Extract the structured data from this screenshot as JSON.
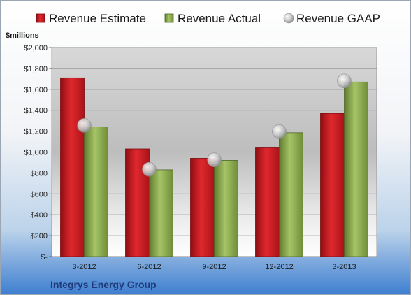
{
  "chart_data": {
    "type": "bar",
    "company": "Integrys Energy Group",
    "ylabel": "$millions",
    "xlabel": "",
    "categories": [
      "3-2012",
      "6-2012",
      "9-2012",
      "12-2012",
      "3-2013"
    ],
    "series": [
      {
        "name": "Revenue Estimate",
        "kind": "bar",
        "color": "#c41e24",
        "values": [
          1710,
          1030,
          940,
          1040,
          1370
        ]
      },
      {
        "name": "Revenue Actual",
        "kind": "bar",
        "color": "#8cad4f",
        "values": [
          1240,
          830,
          920,
          1185,
          1670
        ]
      },
      {
        "name": "Revenue GAAP",
        "kind": "marker",
        "color": "#b8b8b8",
        "values": [
          1255,
          835,
          925,
          1195,
          1680
        ]
      }
    ],
    "ylim": [
      0,
      2000
    ],
    "yticks": [
      0,
      200,
      400,
      600,
      800,
      1000,
      1200,
      1400,
      1600,
      1800,
      2000
    ],
    "ytick_labels": [
      "$-",
      "$200",
      "$400",
      "$600",
      "$800",
      "$1,000",
      "$1,200",
      "$1,400",
      "$1,600",
      "$1,800",
      "$2,000"
    ],
    "grid": true,
    "legend_position": "top"
  }
}
